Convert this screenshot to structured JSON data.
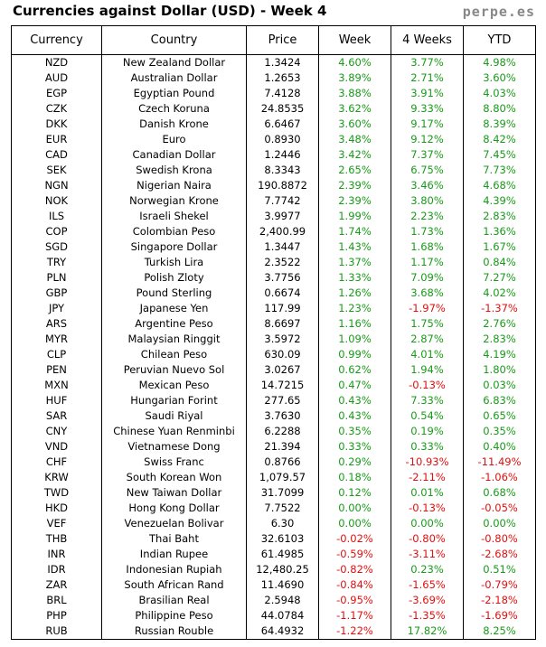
{
  "header": {
    "title": "Currencies against Dollar (USD) - Week 4",
    "site": "perpe.es"
  },
  "table": {
    "columns": [
      "Currency",
      "Country",
      "Price",
      "Week",
      "4 Weeks",
      "YTD"
    ],
    "rows": [
      [
        "NZD",
        "New Zealand Dollar",
        "1.3424",
        "4.60%",
        "3.77%",
        "4.98%"
      ],
      [
        "AUD",
        "Australian Dollar",
        "1.2653",
        "3.89%",
        "2.71%",
        "3.60%"
      ],
      [
        "EGP",
        "Egyptian Pound",
        "7.4128",
        "3.88%",
        "3.91%",
        "4.03%"
      ],
      [
        "CZK",
        "Czech Koruna",
        "24.8535",
        "3.62%",
        "9.33%",
        "8.80%"
      ],
      [
        "DKK",
        "Danish Krone",
        "6.6467",
        "3.60%",
        "9.17%",
        "8.39%"
      ],
      [
        "EUR",
        "Euro",
        "0.8930",
        "3.48%",
        "9.12%",
        "8.42%"
      ],
      [
        "CAD",
        "Canadian Dollar",
        "1.2446",
        "3.42%",
        "7.37%",
        "7.45%"
      ],
      [
        "SEK",
        "Swedish Krona",
        "8.3343",
        "2.65%",
        "6.75%",
        "7.73%"
      ],
      [
        "NGN",
        "Nigerian Naira",
        "190.8872",
        "2.39%",
        "3.46%",
        "4.68%"
      ],
      [
        "NOK",
        "Norwegian Krone",
        "7.7742",
        "2.39%",
        "3.80%",
        "4.39%"
      ],
      [
        "ILS",
        "Israeli Shekel",
        "3.9977",
        "1.99%",
        "2.23%",
        "2.83%"
      ],
      [
        "COP",
        "Colombian Peso",
        "2,400.99",
        "1.74%",
        "1.73%",
        "1.36%"
      ],
      [
        "SGD",
        "Singapore Dollar",
        "1.3447",
        "1.43%",
        "1.68%",
        "1.67%"
      ],
      [
        "TRY",
        "Turkish Lira",
        "2.3522",
        "1.37%",
        "1.17%",
        "0.84%"
      ],
      [
        "PLN",
        "Polish Zloty",
        "3.7756",
        "1.33%",
        "7.09%",
        "7.27%"
      ],
      [
        "GBP",
        "Pound Sterling",
        "0.6674",
        "1.26%",
        "3.68%",
        "4.02%"
      ],
      [
        "JPY",
        "Japanese Yen",
        "117.99",
        "1.23%",
        "-1.97%",
        "-1.37%"
      ],
      [
        "ARS",
        "Argentine Peso",
        "8.6697",
        "1.16%",
        "1.75%",
        "2.76%"
      ],
      [
        "MYR",
        "Malaysian Ringgit",
        "3.5972",
        "1.09%",
        "2.87%",
        "2.83%"
      ],
      [
        "CLP",
        "Chilean Peso",
        "630.09",
        "0.99%",
        "4.01%",
        "4.19%"
      ],
      [
        "PEN",
        "Peruvian Nuevo Sol",
        "3.0267",
        "0.62%",
        "1.94%",
        "1.80%"
      ],
      [
        "MXN",
        "Mexican Peso",
        "14.7215",
        "0.47%",
        "-0.13%",
        "0.03%"
      ],
      [
        "HUF",
        "Hungarian Forint",
        "277.65",
        "0.43%",
        "7.33%",
        "6.83%"
      ],
      [
        "SAR",
        "Saudi Riyal",
        "3.7630",
        "0.43%",
        "0.54%",
        "0.65%"
      ],
      [
        "CNY",
        "Chinese Yuan Renminbi",
        "6.2288",
        "0.35%",
        "0.19%",
        "0.35%"
      ],
      [
        "VND",
        "Vietnamese Dong",
        "21.394",
        "0.33%",
        "0.33%",
        "0.40%"
      ],
      [
        "CHF",
        "Swiss Franc",
        "0.8766",
        "0.29%",
        "-10.93%",
        "-11.49%"
      ],
      [
        "KRW",
        "South Korean Won",
        "1,079.57",
        "0.18%",
        "-2.11%",
        "-1.06%"
      ],
      [
        "TWD",
        "New Taiwan Dollar",
        "31.7099",
        "0.12%",
        "0.01%",
        "0.68%"
      ],
      [
        "HKD",
        "Hong Kong Dollar",
        "7.7522",
        "0.00%",
        "-0.13%",
        "-0.05%"
      ],
      [
        "VEF",
        "Venezuelan Bolivar",
        "6.30",
        "0.00%",
        "0.00%",
        "0.00%"
      ],
      [
        "THB",
        "Thai Baht",
        "32.6103",
        "-0.02%",
        "-0.80%",
        "-0.80%"
      ],
      [
        "INR",
        "Indian Rupee",
        "61.4985",
        "-0.59%",
        "-3.11%",
        "-2.68%"
      ],
      [
        "IDR",
        "Indonesian Rupiah",
        "12,480.25",
        "-0.82%",
        "0.23%",
        "0.51%"
      ],
      [
        "ZAR",
        "South African Rand",
        "11.4690",
        "-0.84%",
        "-1.65%",
        "-0.79%"
      ],
      [
        "BRL",
        "Brasilian Real",
        "2.5948",
        "-0.95%",
        "-3.69%",
        "-2.18%"
      ],
      [
        "PHP",
        "Philippine Peso",
        "44.0784",
        "-1.17%",
        "-1.35%",
        "-1.69%"
      ],
      [
        "RUB",
        "Russian Rouble",
        "64.4932",
        "-1.22%",
        "17.82%",
        "8.25%"
      ]
    ]
  }
}
